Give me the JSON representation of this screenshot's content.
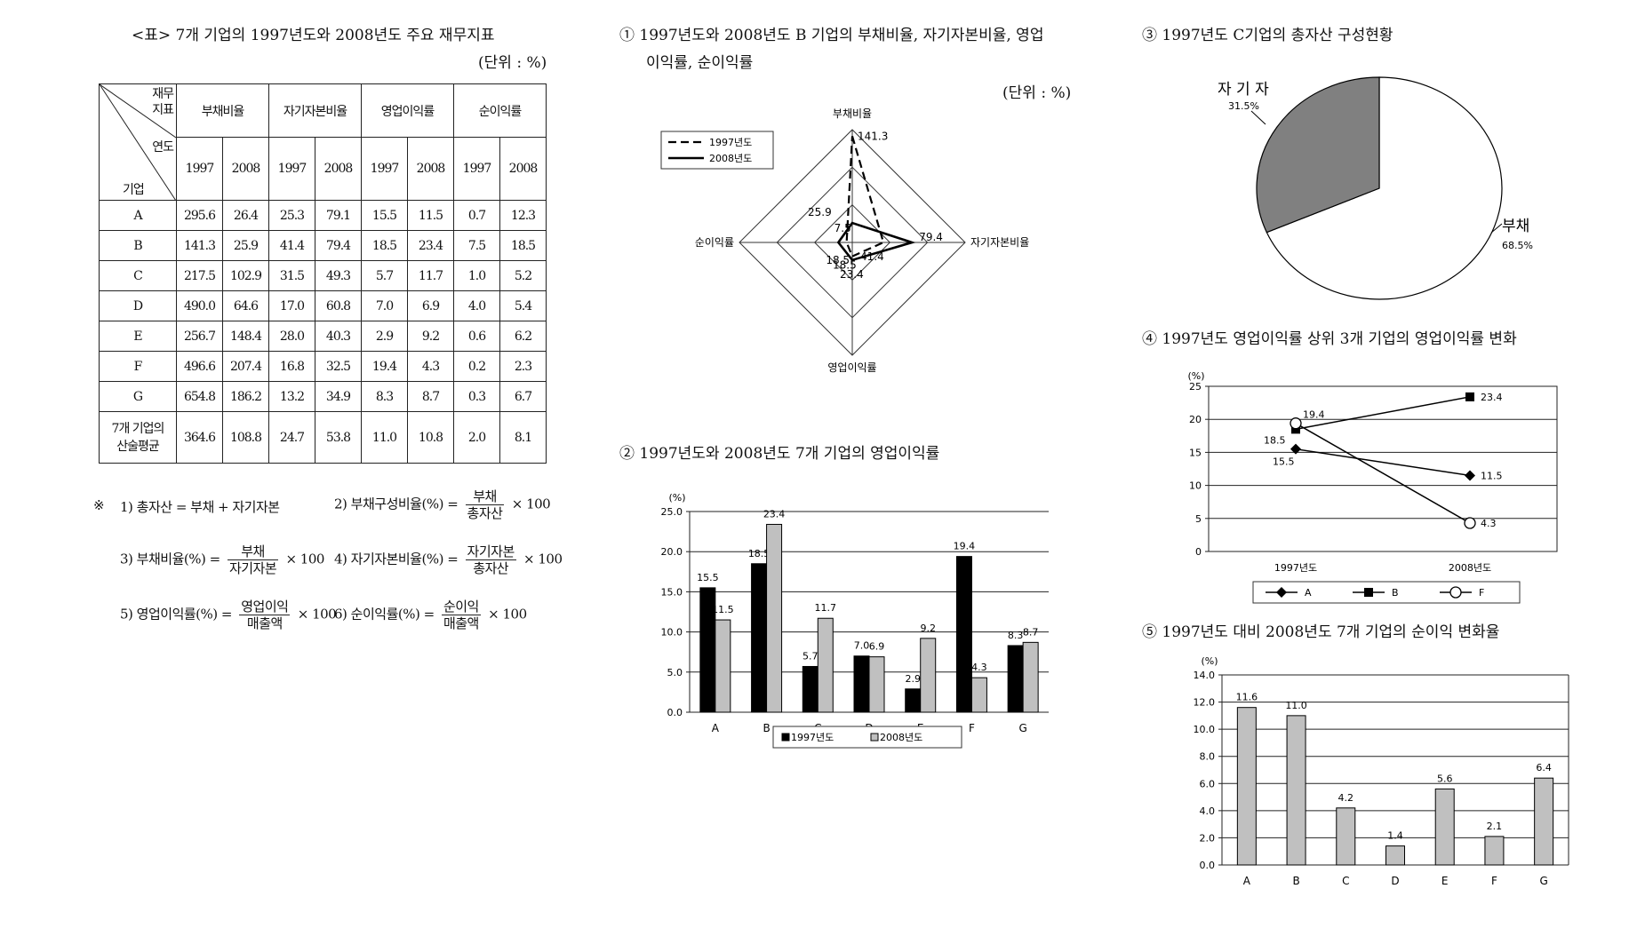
{
  "table": {
    "title": "<표> 7개 기업의 1997년도와 2008년도 주요 재무지표",
    "unit": "(단위 : %)",
    "corner_top1": "재무",
    "corner_top2": "지표",
    "corner_mid": "연도",
    "corner_bottom": "기업",
    "headers": [
      "부채비율",
      "자기자본비율",
      "영업이익률",
      "순이익률"
    ],
    "years": [
      "1997",
      "2008"
    ],
    "rows": [
      {
        "name": "A",
        "values": [
          "295.6",
          "26.4",
          "25.3",
          "79.1",
          "15.5",
          "11.5",
          "0.7",
          "12.3"
        ]
      },
      {
        "name": "B",
        "values": [
          "141.3",
          "25.9",
          "41.4",
          "79.4",
          "18.5",
          "23.4",
          "7.5",
          "18.5"
        ]
      },
      {
        "name": "C",
        "values": [
          "217.5",
          "102.9",
          "31.5",
          "49.3",
          "5.7",
          "11.7",
          "1.0",
          "5.2"
        ]
      },
      {
        "name": "D",
        "values": [
          "490.0",
          "64.6",
          "17.0",
          "60.8",
          "7.0",
          "6.9",
          "4.0",
          "5.4"
        ]
      },
      {
        "name": "E",
        "values": [
          "256.7",
          "148.4",
          "28.0",
          "40.3",
          "2.9",
          "9.2",
          "0.6",
          "6.2"
        ]
      },
      {
        "name": "F",
        "values": [
          "496.6",
          "207.4",
          "16.8",
          "32.5",
          "19.4",
          "4.3",
          "0.2",
          "2.3"
        ]
      },
      {
        "name": "G",
        "values": [
          "654.8",
          "186.2",
          "13.2",
          "34.9",
          "8.3",
          "8.7",
          "0.3",
          "6.7"
        ]
      }
    ],
    "avg_label1": "7개 기업의",
    "avg_label2": "산술평균",
    "avg_values": [
      "364.6",
      "108.8",
      "24.7",
      "53.8",
      "11.0",
      "10.8",
      "2.0",
      "8.1"
    ]
  },
  "notes": {
    "mark": "※",
    "n1": "1) 총자산 = 부채 + 자기자본",
    "n2_label": "2) 부채구성비율(%) =",
    "n2_num": "부채",
    "n2_den": "총자산",
    "n3_label": "3) 부채비율(%) =",
    "n3_num": "부채",
    "n3_den": "자기자본",
    "n4_label": "4) 자기자본비율(%) =",
    "n4_num": "자기자본",
    "n4_den": "총자산",
    "n5_label": "5) 영업이익률(%) =",
    "n5_num": "영업이익",
    "n5_den": "매출액",
    "n6_label": "6) 순이익률(%) =",
    "n6_num": "순이익",
    "n6_den": "매출액",
    "times100": "× 100"
  },
  "titles": {
    "c1_line1": "① 1997년도와 2008년도 B 기업의 부채비율, 자기자본비율, 영업",
    "c1_line2": "이익률, 순이익률",
    "c1_unit": "(단위 : %)",
    "c2": "② 1997년도와 2008년도 7개 기업의 영업이익률",
    "c3": "③ 1997년도 C기업의 총자산 구성현황",
    "c4": "④ 1997년도 영업이익률 상위 3개 기업의 영업이익률 변화",
    "c5": "⑤ 1997년도 대비 2008년도 7개 기업의 순이익 변화율"
  },
  "chart_data": [
    {
      "type": "radar",
      "axes": [
        "부채비율",
        "자기자본비율",
        "영업이익률",
        "순이익률"
      ],
      "series": [
        {
          "name": "1997년도",
          "values": [
            141.3,
            41.4,
            18.5,
            7.5
          ],
          "labels": [
            "141.3",
            "41.4",
            "18.5",
            "7.5"
          ]
        },
        {
          "name": "2008년도",
          "values": [
            25.9,
            79.4,
            23.4,
            18.5
          ],
          "labels": [
            "25.9",
            "79.4",
            "23.4",
            "18.5"
          ]
        }
      ],
      "rmax": 150
    },
    {
      "type": "bar",
      "categories": [
        "A",
        "B",
        "C",
        "D",
        "E",
        "F",
        "G"
      ],
      "series": [
        {
          "name": "1997년도",
          "values": [
            15.5,
            18.5,
            5.7,
            7.0,
            2.9,
            19.4,
            8.3
          ],
          "labels": [
            "15.5",
            "18.5",
            "5.7",
            "7.0",
            "2.9",
            "19.4",
            "8.3"
          ]
        },
        {
          "name": "2008년도",
          "values": [
            11.5,
            23.4,
            11.7,
            6.9,
            9.2,
            4.3,
            8.7
          ],
          "labels": [
            "11.5",
            "23.4",
            "11.7",
            "6.9",
            "9.2",
            "4.3",
            "8.7"
          ]
        }
      ],
      "ylabel": "(%)",
      "ylim": [
        0,
        25
      ],
      "yticks": [
        "0.0",
        "5.0",
        "10.0",
        "15.0",
        "20.0",
        "25.0"
      ],
      "legend": "bottom"
    },
    {
      "type": "pie",
      "slices": [
        {
          "name": "자 기 자",
          "value": 31.5,
          "label": "31.5%",
          "color": "#808080"
        },
        {
          "name": "부채",
          "value": 68.5,
          "label": "68.5%",
          "color": "#ffffff"
        }
      ]
    },
    {
      "type": "line",
      "x": [
        "1997년도",
        "2008년도"
      ],
      "series": [
        {
          "name": "A",
          "values": [
            15.5,
            11.5
          ],
          "labels": [
            "15.5",
            "11.5"
          ],
          "marker": "diamond"
        },
        {
          "name": "B",
          "values": [
            18.5,
            23.4
          ],
          "labels": [
            "18.5",
            "23.4"
          ],
          "marker": "square"
        },
        {
          "name": "F",
          "values": [
            19.4,
            4.3
          ],
          "labels": [
            "19.4",
            "4.3"
          ],
          "marker": "circle"
        }
      ],
      "ylabel": "(%)",
      "ylim": [
        0,
        25
      ],
      "yticks": [
        "0",
        "5",
        "10",
        "15",
        "20",
        "25"
      ],
      "grid": true,
      "legend": "bottom"
    },
    {
      "type": "bar",
      "categories": [
        "A",
        "B",
        "C",
        "D",
        "E",
        "F",
        "G"
      ],
      "values": [
        11.6,
        11.0,
        4.2,
        1.4,
        5.6,
        2.1,
        6.4
      ],
      "labels": [
        "11.6",
        "11.0",
        "4.2",
        "1.4",
        "5.6",
        "2.1",
        "6.4"
      ],
      "ylabel": "(%)",
      "ylim": [
        0,
        14
      ],
      "yticks": [
        "0.0",
        "2.0",
        "4.0",
        "6.0",
        "8.0",
        "10.0",
        "12.0",
        "14.0"
      ],
      "grid": true
    }
  ]
}
